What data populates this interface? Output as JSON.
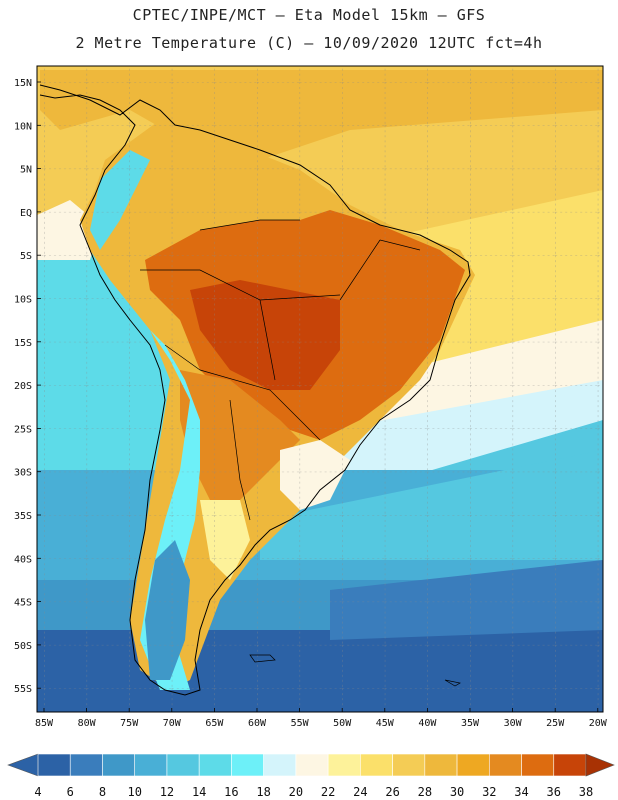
{
  "header": {
    "line1": "CPTEC/INPE/MCT –  Eta Model 15km – GFS",
    "line2": "2 Metre Temperature (C) – 10/09/2020 12UTC fct=4h"
  },
  "axes": {
    "lat_labels": [
      "15N",
      "10N",
      "5N",
      "EQ",
      "5S",
      "10S",
      "15S",
      "20S",
      "25S",
      "30S",
      "35S",
      "40S",
      "45S",
      "50S",
      "55S"
    ],
    "lon_labels": [
      "85W",
      "80W",
      "75W",
      "70W",
      "65W",
      "60W",
      "55W",
      "50W",
      "45W",
      "40W",
      "35W",
      "30W",
      "25W",
      "20W"
    ]
  },
  "colorbar": {
    "labels": [
      "4",
      "6",
      "8",
      "10",
      "12",
      "14",
      "16",
      "18",
      "20",
      "22",
      "24",
      "26",
      "28",
      "30",
      "32",
      "34",
      "36",
      "38"
    ],
    "colors": [
      "#2c62a6",
      "#3a7dbc",
      "#3f98c8",
      "#49afd6",
      "#55c8e0",
      "#5ddbe8",
      "#6df0f8",
      "#d4f4fb",
      "#fdf6e3",
      "#fdf29a",
      "#fbe06a",
      "#f4cc55",
      "#eeb83c",
      "#eea822",
      "#e48a20",
      "#dd6c10",
      "#c74408",
      "#a83204"
    ]
  }
}
